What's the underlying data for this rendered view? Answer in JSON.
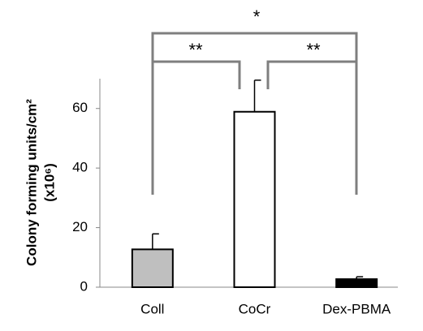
{
  "chart_data": {
    "type": "bar",
    "y_label_lines": [
      "Colony forming units/cm²",
      "(x10⁶)"
    ],
    "categories": [
      "Coll",
      "CoCr",
      "Dex-PBMA"
    ],
    "values": [
      12.7,
      58.9,
      2.7
    ],
    "errors": [
      5.2,
      10.6,
      0.8
    ],
    "colors": [
      "#bfbfbf",
      "#ffffff",
      "#000000"
    ],
    "ylim": [
      0,
      70
    ],
    "yticks": [
      0,
      20,
      40,
      60
    ],
    "grid": false,
    "annotations": [
      "*",
      "**",
      "**"
    ]
  }
}
